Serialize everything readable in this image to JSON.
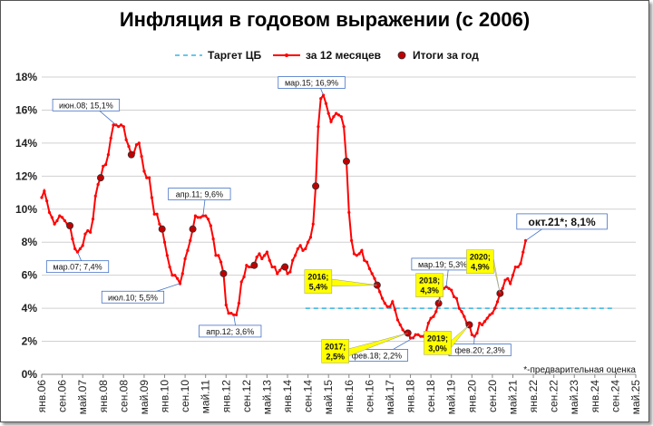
{
  "chart_data": {
    "type": "line",
    "title": "Инфляция в годовом выражении (с 2006)",
    "ylim": [
      0,
      18
    ],
    "yticks": [
      "0%",
      "2%",
      "4%",
      "6%",
      "8%",
      "10%",
      "12%",
      "14%",
      "16%",
      "18%"
    ],
    "grid": true,
    "legend": {
      "placement": "top",
      "entries": [
        "Таргет ЦБ",
        "за 12 месяцев",
        "Итоги за год"
      ]
    },
    "x_tick_labels": [
      "янв.06",
      "сен.06",
      "май.07",
      "янв.08",
      "сен.08",
      "май.09",
      "янв.10",
      "сен.10",
      "май.11",
      "янв.12",
      "сен.12",
      "май.13",
      "янв.14",
      "сен.14",
      "май.15",
      "янв.16",
      "сен.16",
      "май.17",
      "янв.18",
      "сен.18",
      "май.19",
      "янв.20",
      "сен.20",
      "май.21",
      "янв.22",
      "сен.22",
      "май.23",
      "янв.24",
      "сен.24",
      "май.25"
    ],
    "target": {
      "name": "Таргет ЦБ",
      "value": 4.0,
      "from": "янв.15",
      "to": "май.25"
    },
    "series": [
      {
        "name": "за 12 месяцев",
        "color": "#ff0000",
        "x_months_from_jan06": [
          0,
          1,
          2,
          3,
          4,
          5,
          6,
          7,
          8,
          9,
          10,
          11,
          12,
          13,
          14,
          15,
          16,
          17,
          18,
          19,
          20,
          21,
          22,
          23,
          24,
          25,
          26,
          27,
          28,
          29,
          30,
          31,
          32,
          33,
          34,
          35,
          36,
          37,
          38,
          39,
          40,
          41,
          42,
          43,
          44,
          45,
          46,
          47,
          48,
          49,
          50,
          51,
          52,
          53,
          54,
          55,
          56,
          57,
          58,
          59,
          60,
          61,
          62,
          63,
          64,
          65,
          66,
          67,
          68,
          69,
          70,
          71,
          72,
          73,
          74,
          75,
          76,
          77,
          78,
          79,
          80,
          81,
          82,
          83,
          84,
          85,
          86,
          87,
          88,
          89,
          90,
          91,
          92,
          93,
          94,
          95,
          96,
          97,
          98,
          99,
          100,
          101,
          102,
          103,
          104,
          105,
          106,
          107,
          108,
          109,
          110,
          111,
          112,
          113,
          114,
          115,
          116,
          117,
          118,
          119,
          120,
          121,
          122,
          123,
          124,
          125,
          126,
          127,
          128,
          129,
          130,
          131,
          132,
          133,
          134,
          135,
          136,
          137,
          138,
          139,
          140,
          141,
          142,
          143,
          144,
          145,
          146,
          147,
          148,
          149,
          150,
          151,
          152,
          153,
          154,
          155,
          156,
          157,
          158,
          159,
          160,
          161,
          162,
          163,
          164,
          165,
          166,
          167,
          168,
          169,
          170,
          171,
          172,
          173,
          174,
          175,
          176,
          177,
          178,
          179,
          180,
          181,
          182,
          183,
          184,
          185,
          186,
          187,
          188,
          189
        ],
        "values": [
          10.7,
          11.1,
          10.5,
          9.8,
          9.5,
          9.1,
          9.3,
          9.6,
          9.5,
          9.3,
          9.1,
          9.0,
          8.2,
          7.6,
          7.4,
          7.6,
          7.8,
          8.5,
          8.7,
          8.6,
          9.4,
          10.8,
          11.5,
          11.9,
          12.6,
          12.7,
          13.3,
          14.3,
          15.1,
          15.1,
          15.0,
          15.1,
          15.0,
          14.2,
          13.8,
          13.3,
          13.4,
          13.9,
          14.0,
          13.2,
          12.3,
          11.9,
          11.9,
          10.7,
          9.7,
          9.7,
          9.1,
          8.8,
          8.0,
          7.2,
          6.5,
          6.0,
          6.0,
          5.8,
          5.5,
          6.1,
          7.0,
          7.5,
          8.1,
          8.8,
          9.6,
          9.5,
          9.5,
          9.6,
          9.6,
          9.4,
          9.0,
          8.2,
          7.2,
          7.2,
          6.8,
          6.1,
          4.2,
          3.7,
          3.7,
          3.6,
          3.6,
          4.3,
          5.6,
          5.9,
          6.6,
          6.5,
          6.5,
          6.6,
          7.1,
          7.3,
          7.0,
          7.2,
          7.4,
          6.9,
          6.5,
          6.5,
          6.1,
          6.3,
          6.5,
          6.5,
          6.1,
          6.2,
          6.9,
          7.2,
          7.6,
          7.8,
          7.5,
          7.6,
          8.0,
          8.3,
          9.1,
          11.4,
          15.0,
          16.7,
          16.9,
          16.4,
          15.8,
          15.3,
          15.6,
          15.8,
          15.7,
          15.6,
          15.0,
          12.9,
          9.8,
          8.1,
          7.3,
          7.2,
          7.3,
          7.5,
          6.9,
          6.8,
          6.4,
          6.1,
          5.8,
          5.4,
          5.0,
          4.6,
          4.3,
          4.1,
          4.1,
          4.4,
          3.9,
          3.3,
          3.0,
          2.7,
          2.5,
          2.5,
          2.2,
          2.2,
          2.4,
          2.4,
          2.3,
          2.3,
          2.5,
          3.1,
          3.4,
          3.5,
          3.8,
          4.3,
          5.0,
          5.2,
          5.3,
          5.2,
          5.1,
          4.7,
          4.6,
          4.0,
          3.8,
          3.5,
          3.1,
          3.0,
          2.4,
          2.3,
          2.5,
          3.1,
          3.0,
          3.2,
          3.4,
          3.6,
          3.7,
          4.0,
          4.4,
          4.9,
          5.2,
          5.7,
          5.8,
          5.5,
          6.0,
          6.5,
          6.5,
          6.7,
          7.4,
          8.1
        ]
      }
    ],
    "year_totals": {
      "name": "Итоги за год",
      "x_months_from_jan06": [
        11,
        23,
        35,
        47,
        59,
        71,
        83,
        95,
        107,
        119,
        131,
        143,
        155,
        167,
        179
      ],
      "values": [
        9.0,
        11.9,
        13.3,
        8.8,
        8.8,
        6.1,
        6.6,
        6.5,
        11.4,
        12.9,
        5.4,
        2.5,
        4.3,
        3.0,
        4.9
      ]
    },
    "annotations": [
      {
        "text": "июн.08; 15,1%",
        "x": 29,
        "y": 15.1
      },
      {
        "text": "мар.07; 7,4%",
        "x": 14,
        "y": 7.4
      },
      {
        "text": "июл.10; 5,5%",
        "x": 54,
        "y": 5.5
      },
      {
        "text": "апр.11; 9,6%",
        "x": 63,
        "y": 9.6
      },
      {
        "text": "апр.12; 3,6%",
        "x": 75,
        "y": 3.6
      },
      {
        "text": "мар.15; 16,9%",
        "x": 110,
        "y": 16.9
      },
      {
        "text": "фев.18; 2,2%",
        "x": 145,
        "y": 2.2
      },
      {
        "text": "мар.19; 5,3%",
        "x": 158,
        "y": 5.3
      },
      {
        "text": "фев.20; 2,3%",
        "x": 169,
        "y": 2.3
      },
      {
        "text": "окт.21*; 8,1%",
        "x": 189,
        "y": 8.1
      }
    ],
    "year_callouts": [
      {
        "line1": "2016;",
        "line2": "5,4%",
        "x": 131,
        "y": 5.4
      },
      {
        "line1": "2017;",
        "line2": "2,5%",
        "x": 143,
        "y": 2.5
      },
      {
        "line1": "2018;",
        "line2": "4,3%",
        "x": 155,
        "y": 4.3
      },
      {
        "line1": "2019;",
        "line2": "3,0%",
        "x": 167,
        "y": 3.0
      },
      {
        "line1": "2020;",
        "line2": "4,9%",
        "x": 179,
        "y": 4.9
      }
    ],
    "footnote": "*-предварительная оценка"
  },
  "colors": {
    "line": "#ff0000",
    "target": "#33b5e5",
    "year_dot": "#c00000",
    "callout_fill": "#ffff00",
    "grid": "#d0d0d0"
  }
}
